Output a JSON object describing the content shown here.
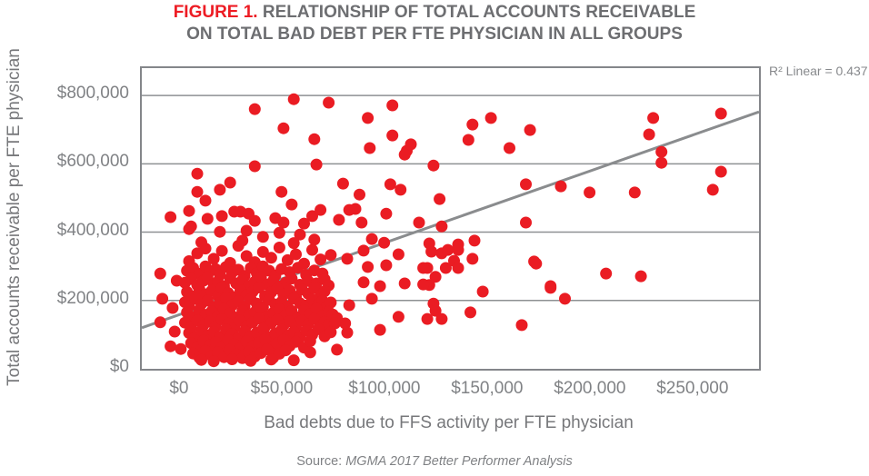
{
  "title": {
    "figure_label": "FIGURE 1.",
    "line1_rest": " RELATIONSHIP OF TOTAL ACCOUNTS RECEIVABLE",
    "line2": "ON TOTAL BAD DEBT PER FTE PHYSICIAN IN ALL GROUPS"
  },
  "annotation": {
    "r2_label": "R² Linear = 0.437"
  },
  "axes": {
    "y_title": "Total accounts receivable per FTE physician",
    "x_title": "Bad debts due to FFS activity per FTE physician"
  },
  "source": {
    "prefix": "Source: ",
    "citation": "MGMA 2017 Better Performer Analysis"
  },
  "colors": {
    "dot": "#ea1c23",
    "accent_red": "#ed1c24",
    "title_gray": "#6d6e71",
    "text_gray": "#77787b",
    "tick_gray": "#808285",
    "grid_gray": "#8e9093",
    "trend_gray": "#8a8c8e",
    "border_gray": "#84868a"
  },
  "chart_data": {
    "type": "scatter",
    "title": "FIGURE 1. RELATIONSHIP OF TOTAL ACCOUNTS RECEIVABLE ON TOTAL BAD DEBT PER FTE PHYSICIAN IN ALL GROUPS",
    "xlabel": "Bad debts due to FFS activity per FTE physician",
    "ylabel": "Total accounts receivable per FTE physician",
    "units": "USD, values in thousands",
    "xlim": [
      -19,
      281.5
    ],
    "ylim": [
      0,
      880
    ],
    "grid": "horizontal gridlines at y-major ticks only",
    "legend": "none",
    "x_ticks": [
      {
        "v": 0,
        "label": "$0"
      },
      {
        "v": 50,
        "label": "$50,000"
      },
      {
        "v": 100,
        "label": "$100,000"
      },
      {
        "v": 150,
        "label": "$150,000"
      },
      {
        "v": 200,
        "label": "$200,000"
      },
      {
        "v": 250,
        "label": "$250,000"
      }
    ],
    "y_ticks": [
      {
        "v": 0,
        "label": "$0"
      },
      {
        "v": 200,
        "label": "$200,000"
      },
      {
        "v": 400,
        "label": "$400,000"
      },
      {
        "v": 600,
        "label": "$600,000"
      },
      {
        "v": 800,
        "label": "$800,000"
      }
    ],
    "trendline": {
      "x1": -19,
      "y1": 120,
      "x2": 281.5,
      "y2": 752,
      "r2": 0.437
    },
    "points": [
      [
        55,
        789
      ],
      [
        72,
        779
      ],
      [
        36,
        760
      ],
      [
        103,
        771
      ],
      [
        50,
        704
      ],
      [
        91,
        734
      ],
      [
        230,
        734
      ],
      [
        263,
        747
      ],
      [
        65,
        672
      ],
      [
        103,
        683
      ],
      [
        142,
        715
      ],
      [
        151,
        734
      ],
      [
        170,
        699
      ],
      [
        140,
        670
      ],
      [
        160,
        646
      ],
      [
        228,
        686
      ],
      [
        92,
        646
      ],
      [
        110,
        638
      ],
      [
        112,
        657
      ],
      [
        109,
        627
      ],
      [
        234,
        635
      ],
      [
        234,
        603
      ],
      [
        263,
        577
      ],
      [
        8,
        571
      ],
      [
        36,
        593
      ],
      [
        66,
        598
      ],
      [
        123,
        595
      ],
      [
        102,
        540
      ],
      [
        107,
        524
      ],
      [
        168,
        540
      ],
      [
        185,
        534
      ],
      [
        199,
        516
      ],
      [
        221,
        516
      ],
      [
        259,
        524
      ],
      [
        126,
        497
      ],
      [
        8,
        518
      ],
      [
        24,
        545
      ],
      [
        19,
        524
      ],
      [
        12,
        492
      ],
      [
        49,
        518
      ],
      [
        54,
        481
      ],
      [
        79,
        542
      ],
      [
        87,
        510
      ],
      [
        100,
        454
      ],
      [
        116,
        428
      ],
      [
        127,
        417
      ],
      [
        168,
        428
      ],
      [
        -5,
        444
      ],
      [
        4,
        462
      ],
      [
        5,
        417
      ],
      [
        13,
        439
      ],
      [
        20,
        447
      ],
      [
        26,
        460
      ],
      [
        29,
        460
      ],
      [
        33,
        454
      ],
      [
        36,
        433
      ],
      [
        46,
        441
      ],
      [
        50,
        428
      ],
      [
        60,
        425
      ],
      [
        64,
        447
      ],
      [
        68,
        465
      ],
      [
        77,
        436
      ],
      [
        82,
        465
      ],
      [
        85,
        468
      ],
      [
        88,
        428
      ],
      [
        93,
        380
      ],
      [
        99,
        369
      ],
      [
        173,
        308
      ],
      [
        207,
        279
      ],
      [
        224,
        271
      ],
      [
        180,
        237
      ],
      [
        187,
        205
      ],
      [
        166,
        128
      ],
      [
        121,
        367
      ],
      [
        135,
        364
      ],
      [
        143,
        375
      ],
      [
        122,
        343
      ],
      [
        127,
        338
      ],
      [
        130,
        348
      ],
      [
        135,
        348
      ],
      [
        142,
        322
      ],
      [
        133,
        316
      ],
      [
        135,
        295
      ],
      [
        120,
        295
      ],
      [
        124,
        269
      ],
      [
        129,
        295
      ],
      [
        121,
        245
      ],
      [
        172,
        314
      ],
      [
        180,
        242
      ],
      [
        147,
        226
      ],
      [
        123,
        191
      ],
      [
        124,
        170
      ],
      [
        120,
        146
      ],
      [
        127,
        146
      ],
      [
        141,
        165
      ],
      [
        81,
        322
      ],
      [
        89,
        346
      ],
      [
        91,
        298
      ],
      [
        100,
        303
      ],
      [
        106,
        335
      ],
      [
        109,
        250
      ],
      [
        118,
        247
      ],
      [
        93,
        205
      ],
      [
        82,
        186
      ],
      [
        106,
        152
      ],
      [
        97,
        114
      ],
      [
        81,
        106
      ],
      [
        80,
        133
      ],
      [
        72,
        106
      ],
      [
        76,
        56
      ],
      [
        63,
        48
      ],
      [
        69,
        144
      ],
      [
        89,
        253
      ],
      [
        97,
        242
      ],
      [
        118,
        295
      ],
      [
        4,
        315
      ],
      [
        8,
        338
      ],
      [
        12,
        352
      ],
      [
        16,
        322
      ],
      [
        20,
        345
      ],
      [
        24,
        310
      ],
      [
        28,
        360
      ],
      [
        32,
        330
      ],
      [
        36,
        312
      ],
      [
        40,
        342
      ],
      [
        44,
        325
      ],
      [
        48,
        355
      ],
      [
        52,
        318
      ],
      [
        56,
        335
      ],
      [
        60,
        308
      ],
      [
        64,
        348
      ],
      [
        68,
        320
      ],
      [
        73,
        333
      ],
      [
        4,
        409
      ],
      [
        19,
        401
      ],
      [
        32,
        404
      ],
      [
        48,
        398
      ],
      [
        58,
        393
      ],
      [
        40,
        386
      ],
      [
        10,
        370
      ],
      [
        30,
        375
      ],
      [
        55,
        368
      ],
      [
        65,
        378
      ],
      [
        -10,
        279
      ],
      [
        -2,
        258
      ],
      [
        -9,
        205
      ],
      [
        -4,
        178
      ],
      [
        -10,
        136
      ],
      [
        -3,
        109
      ],
      [
        -5,
        66
      ],
      [
        0,
        58
      ],
      [
        3,
        287
      ],
      [
        6,
        295
      ],
      [
        9,
        278
      ],
      [
        12,
        300
      ],
      [
        14,
        285
      ],
      [
        17,
        292
      ],
      [
        19,
        275
      ],
      [
        22,
        298
      ],
      [
        25,
        282
      ],
      [
        28,
        290
      ],
      [
        31,
        272
      ],
      [
        34,
        295
      ],
      [
        37,
        280
      ],
      [
        40,
        300
      ],
      [
        43,
        287
      ],
      [
        46,
        273
      ],
      [
        49,
        292
      ],
      [
        53,
        283
      ],
      [
        57,
        296
      ],
      [
        61,
        275
      ],
      [
        65,
        288
      ],
      [
        69,
        279
      ],
      [
        2,
        252
      ],
      [
        5,
        263
      ],
      [
        8,
        245
      ],
      [
        11,
        258
      ],
      [
        13,
        268
      ],
      [
        16,
        248
      ],
      [
        18,
        255
      ],
      [
        21,
        242
      ],
      [
        24,
        265
      ],
      [
        27,
        250
      ],
      [
        30,
        260
      ],
      [
        33,
        243
      ],
      [
        36,
        255
      ],
      [
        39,
        268
      ],
      [
        42,
        247
      ],
      [
        45,
        258
      ],
      [
        48,
        241
      ],
      [
        51,
        252
      ],
      [
        54,
        264
      ],
      [
        58,
        246
      ],
      [
        62,
        257
      ],
      [
        66,
        250
      ],
      [
        70,
        262
      ],
      [
        72,
        244
      ],
      [
        3,
        225
      ],
      [
        6,
        212
      ],
      [
        9,
        233
      ],
      [
        12,
        218
      ],
      [
        15,
        228
      ],
      [
        18,
        214
      ],
      [
        20,
        236
      ],
      [
        23,
        222
      ],
      [
        26,
        210
      ],
      [
        29,
        230
      ],
      [
        32,
        216
      ],
      [
        35,
        226
      ],
      [
        38,
        238
      ],
      [
        41,
        213
      ],
      [
        44,
        224
      ],
      [
        47,
        235
      ],
      [
        50,
        217
      ],
      [
        53,
        229
      ],
      [
        56,
        211
      ],
      [
        59,
        232
      ],
      [
        62,
        220
      ],
      [
        65,
        237
      ],
      [
        68,
        215
      ],
      [
        70,
        227
      ],
      [
        2,
        195
      ],
      [
        4,
        183
      ],
      [
        7,
        205
      ],
      [
        10,
        190
      ],
      [
        13,
        200
      ],
      [
        16,
        181
      ],
      [
        19,
        193
      ],
      [
        22,
        207
      ],
      [
        25,
        186
      ],
      [
        28,
        198
      ],
      [
        31,
        182
      ],
      [
        34,
        204
      ],
      [
        37,
        191
      ],
      [
        40,
        180
      ],
      [
        43,
        202
      ],
      [
        46,
        188
      ],
      [
        49,
        196
      ],
      [
        52,
        183
      ],
      [
        55,
        206
      ],
      [
        58,
        192
      ],
      [
        61,
        185
      ],
      [
        64,
        203
      ],
      [
        67,
        189
      ],
      [
        69,
        199
      ],
      [
        71,
        181
      ],
      [
        73,
        194
      ],
      [
        3,
        165
      ],
      [
        6,
        152
      ],
      [
        9,
        172
      ],
      [
        12,
        158
      ],
      [
        15,
        168
      ],
      [
        18,
        154
      ],
      [
        21,
        175
      ],
      [
        24,
        162
      ],
      [
        27,
        150
      ],
      [
        30,
        170
      ],
      [
        33,
        156
      ],
      [
        36,
        166
      ],
      [
        39,
        178
      ],
      [
        42,
        153
      ],
      [
        45,
        164
      ],
      [
        48,
        174
      ],
      [
        51,
        157
      ],
      [
        54,
        169
      ],
      [
        57,
        151
      ],
      [
        60,
        171
      ],
      [
        63,
        160
      ],
      [
        66,
        176
      ],
      [
        69,
        155
      ],
      [
        72,
        167
      ],
      [
        74,
        159
      ],
      [
        76,
        149
      ],
      [
        2,
        135
      ],
      [
        5,
        122
      ],
      [
        8,
        142
      ],
      [
        11,
        128
      ],
      [
        14,
        138
      ],
      [
        17,
        124
      ],
      [
        20,
        145
      ],
      [
        23,
        132
      ],
      [
        26,
        120
      ],
      [
        29,
        140
      ],
      [
        32,
        126
      ],
      [
        35,
        136
      ],
      [
        38,
        147
      ],
      [
        41,
        123
      ],
      [
        44,
        134
      ],
      [
        47,
        144
      ],
      [
        50,
        127
      ],
      [
        53,
        139
      ],
      [
        56,
        121
      ],
      [
        59,
        141
      ],
      [
        62,
        130
      ],
      [
        65,
        146
      ],
      [
        68,
        125
      ],
      [
        70,
        137
      ],
      [
        72,
        129
      ],
      [
        75,
        133
      ],
      [
        4,
        105
      ],
      [
        7,
        93
      ],
      [
        10,
        112
      ],
      [
        13,
        98
      ],
      [
        16,
        108
      ],
      [
        19,
        94
      ],
      [
        22,
        115
      ],
      [
        25,
        102
      ],
      [
        28,
        91
      ],
      [
        31,
        110
      ],
      [
        34,
        96
      ],
      [
        37,
        106
      ],
      [
        40,
        117
      ],
      [
        43,
        93
      ],
      [
        46,
        104
      ],
      [
        49,
        114
      ],
      [
        52,
        97
      ],
      [
        55,
        109
      ],
      [
        58,
        92
      ],
      [
        61,
        111
      ],
      [
        64,
        100
      ],
      [
        67,
        116
      ],
      [
        70,
        95
      ],
      [
        73,
        107
      ],
      [
        5,
        75
      ],
      [
        8,
        63
      ],
      [
        11,
        82
      ],
      [
        14,
        68
      ],
      [
        17,
        78
      ],
      [
        20,
        64
      ],
      [
        23,
        85
      ],
      [
        26,
        72
      ],
      [
        29,
        61
      ],
      [
        32,
        80
      ],
      [
        35,
        66
      ],
      [
        38,
        76
      ],
      [
        41,
        87
      ],
      [
        44,
        63
      ],
      [
        47,
        74
      ],
      [
        50,
        84
      ],
      [
        53,
        67
      ],
      [
        56,
        79
      ],
      [
        60,
        62
      ],
      [
        63,
        81
      ],
      [
        6,
        45
      ],
      [
        9,
        33
      ],
      [
        12,
        52
      ],
      [
        15,
        38
      ],
      [
        18,
        48
      ],
      [
        21,
        34
      ],
      [
        24,
        55
      ],
      [
        27,
        42
      ],
      [
        30,
        31
      ],
      [
        33,
        50
      ],
      [
        36,
        36
      ],
      [
        39,
        46
      ],
      [
        42,
        57
      ],
      [
        45,
        33
      ],
      [
        48,
        44
      ],
      [
        51,
        54
      ],
      [
        10,
        26
      ],
      [
        16,
        22
      ],
      [
        25,
        28
      ],
      [
        34,
        23
      ],
      [
        44,
        27
      ],
      [
        55,
        25
      ]
    ]
  }
}
